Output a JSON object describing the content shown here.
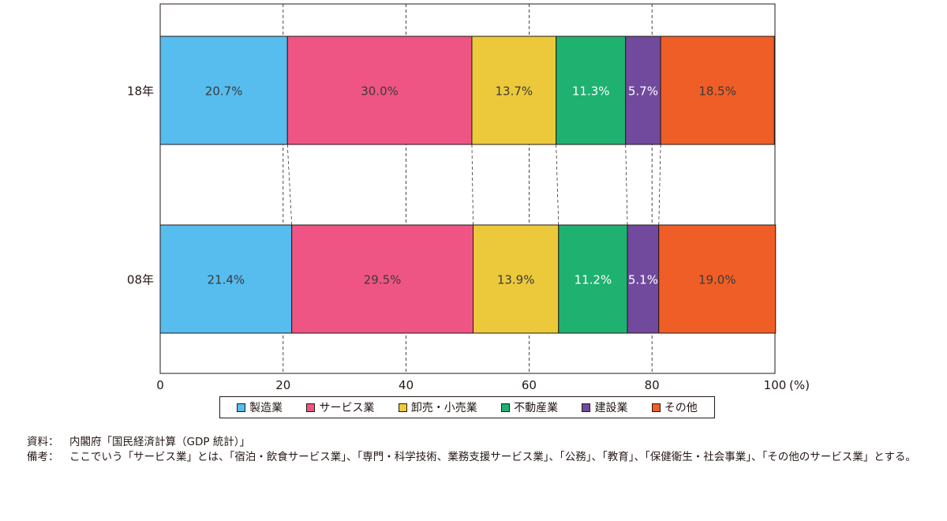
{
  "chart_data": {
    "type": "bar",
    "orientation": "horizontal",
    "stacked": true,
    "categories": [
      "18年",
      "08年"
    ],
    "series": [
      {
        "name": "製造業",
        "values": [
          20.7,
          21.4
        ],
        "labels": [
          "20.7%",
          "21.4%"
        ],
        "color": "#56bdee",
        "label_color": "#3a3a3a"
      },
      {
        "name": "サービス業",
        "values": [
          30.0,
          29.5
        ],
        "labels": [
          "30.0%",
          "29.5%"
        ],
        "color": "#ef5584",
        "label_color": "#3a3a3a"
      },
      {
        "name": "卸売・小売業",
        "values": [
          13.7,
          13.9
        ],
        "labels": [
          "13.7%",
          "13.9%"
        ],
        "color": "#ecc93a",
        "label_color": "#3a3a3a"
      },
      {
        "name": "不動産業",
        "values": [
          11.3,
          11.2
        ],
        "labels": [
          "11.3%",
          "11.2%"
        ],
        "color": "#1fb170",
        "label_color": "#ffffff"
      },
      {
        "name": "建設業",
        "values": [
          5.7,
          5.1
        ],
        "labels": [
          "5.7%",
          "5.1%"
        ],
        "color": "#714a9e",
        "label_color": "#ffffff"
      },
      {
        "name": "その他",
        "values": [
          18.5,
          19.0
        ],
        "labels": [
          "18.5%",
          "19.0%"
        ],
        "color": "#ef5e26",
        "label_color": "#3a3a3a"
      }
    ],
    "xlim": [
      0,
      100
    ],
    "xticks": [
      "0",
      "20",
      "40",
      "60",
      "80",
      "100"
    ],
    "xunit": "(%)",
    "grid": "dashed vertical",
    "legend_position": "bottom"
  },
  "notes": {
    "source_label": "資料：",
    "source_text": "内閣府「国民経済計算（GDP 統計）」",
    "remarks_label": "備考：",
    "remarks_text": "ここでいう「サービス業」とは、「宿泊・飲食サービス業」、「専門・科学技術、業務支援サービス業」、「公務」、「教育」、「保健衛生・社会事業」、「その他のサービス業」とする。"
  }
}
